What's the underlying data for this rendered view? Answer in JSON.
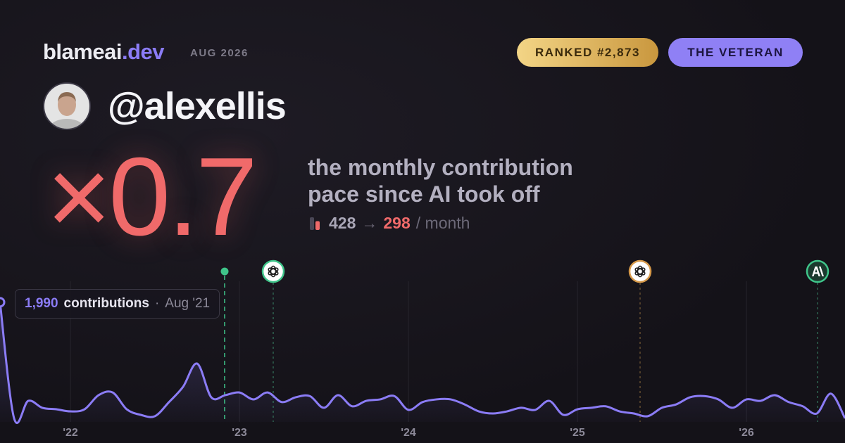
{
  "header": {
    "brand": "blameai",
    "brand_suffix": ".dev",
    "period": "AUG 2026",
    "rank": "RANKED #2,873",
    "badge": "THE VETERAN"
  },
  "profile": {
    "handle": "@alexellis"
  },
  "stat": {
    "multiplier": "×0.7",
    "description_line1": "the monthly contribution",
    "description_line2": "pace since AI took off",
    "before": 428,
    "arrow": "→",
    "after": 298,
    "unit": "/ month"
  },
  "chart_data": {
    "type": "line",
    "categories": [
      null,
      null,
      null,
      null,
      null,
      "'22",
      null,
      null,
      null,
      null,
      null,
      null,
      null,
      null,
      null,
      null,
      null,
      "'23",
      null,
      null,
      null,
      null,
      null,
      null,
      null,
      null,
      null,
      null,
      null,
      "'24",
      null,
      null,
      null,
      null,
      null,
      null,
      null,
      null,
      null,
      null,
      null,
      "'25",
      null,
      null,
      null,
      null,
      null,
      null,
      null,
      null,
      null,
      null,
      null,
      "'26",
      null,
      null,
      null,
      null,
      null,
      null,
      null
    ],
    "series": [
      {
        "color": "#8b7cf6",
        "values": [
          1990,
          60,
          350,
          235,
          210,
          175,
          210,
          445,
          490,
          210,
          117,
          95,
          330,
          585,
          970,
          410,
          445,
          490,
          375,
          490,
          330,
          410,
          430,
          235,
          445,
          260,
          350,
          375,
          430,
          200,
          330,
          375,
          375,
          290,
          175,
          140,
          175,
          235,
          200,
          350,
          117,
          210,
          235,
          260,
          175,
          140,
          95,
          235,
          290,
          410,
          430,
          375,
          235,
          375,
          350,
          445,
          330,
          260,
          140,
          470,
          60
        ]
      }
    ],
    "ylim": [
      0,
      2000
    ],
    "tooltip": {
      "value_label": "1,990",
      "unit": "contributions",
      "separator": "·",
      "date": "Aug '21"
    }
  }
}
